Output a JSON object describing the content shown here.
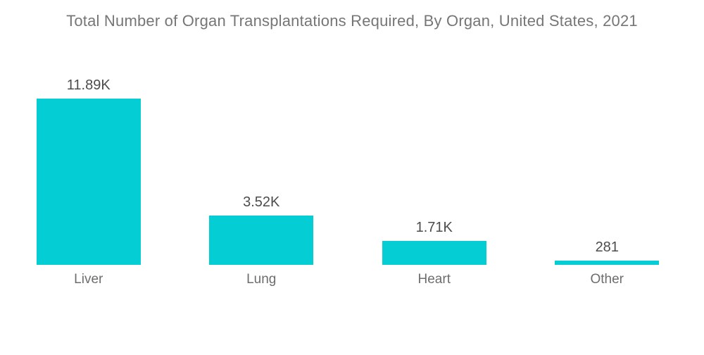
{
  "chart_data": {
    "type": "bar",
    "title": "Total Number of Organ Transplantations Required, By Organ, United States, 2021",
    "categories": [
      "Liver",
      "Lung",
      "Heart",
      "Other"
    ],
    "values": [
      11890,
      3520,
      1710,
      281
    ],
    "value_labels": [
      "11.89K",
      "3.52K",
      "1.71K",
      "281"
    ],
    "xlabel": "",
    "ylabel": "",
    "ylim": [
      0,
      11890
    ],
    "grid": false,
    "axes_visible": false,
    "legend": false,
    "orientation": "vertical",
    "colors": {
      "bar": "#04CDD3",
      "title_text": "#767676",
      "value_label_text": "#4C4C4C",
      "category_label_text": "#6D6D6D",
      "background": "#FFFFFF"
    }
  }
}
